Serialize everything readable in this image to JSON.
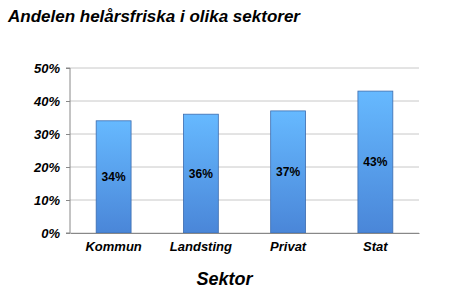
{
  "chart_data": {
    "type": "bar",
    "title": "Andelen helårsfriska i olika sektorer",
    "x_label": "Sektor",
    "categories": [
      "Kommun",
      "Landsting",
      "Privat",
      "Stat"
    ],
    "values": [
      34,
      36,
      37,
      43
    ],
    "value_labels": [
      "34%",
      "36%",
      "37%",
      "43%"
    ],
    "color": "#4a86d8",
    "ylim": [
      0,
      50
    ],
    "yticks": [
      {
        "value": 0,
        "label": "0%"
      },
      {
        "value": 10,
        "label": "10%"
      },
      {
        "value": 20,
        "label": "20%"
      },
      {
        "value": 30,
        "label": "30%"
      },
      {
        "value": 40,
        "label": "40%"
      },
      {
        "value": 50,
        "label": "50%"
      }
    ],
    "grid": true,
    "data_labels": true
  }
}
